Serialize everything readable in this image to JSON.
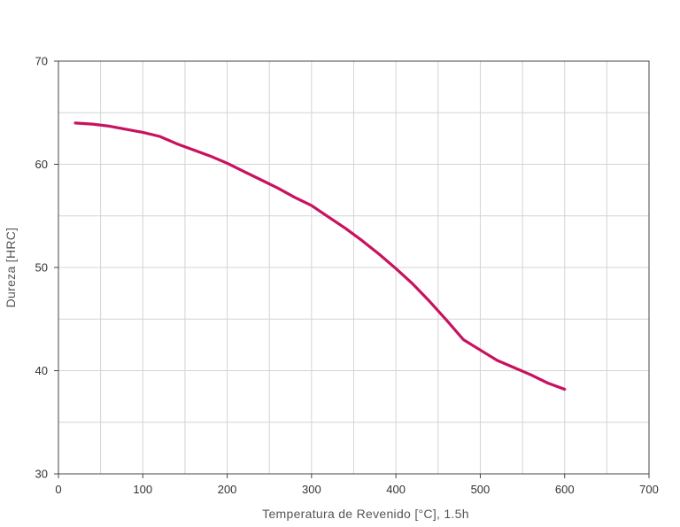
{
  "chart_data": {
    "type": "line",
    "title": "",
    "xlabel": "Temperatura de Revenido [°C], 1.5h",
    "ylabel": "Dureza [HRC]",
    "xlim": [
      0,
      700
    ],
    "ylim": [
      30,
      70
    ],
    "x_ticks": [
      0,
      100,
      200,
      300,
      400,
      500,
      600,
      700
    ],
    "y_ticks": [
      30,
      40,
      50,
      60,
      70
    ],
    "x_grid_step": 50,
    "y_grid_step": 5,
    "grid": true,
    "legend": "none",
    "series": [
      {
        "color": "#c8125f",
        "x": [
          20,
          40,
          60,
          80,
          100,
          120,
          140,
          160,
          180,
          200,
          220,
          240,
          260,
          280,
          300,
          320,
          340,
          360,
          380,
          400,
          420,
          440,
          460,
          480,
          500,
          520,
          540,
          560,
          580,
          600
        ],
        "y": [
          64.0,
          63.9,
          63.7,
          63.4,
          63.1,
          62.7,
          62.0,
          61.4,
          60.8,
          60.1,
          59.3,
          58.5,
          57.7,
          56.8,
          56.0,
          54.9,
          53.8,
          52.6,
          51.3,
          49.9,
          48.4,
          46.7,
          44.9,
          43.0,
          42.0,
          41.0,
          40.3,
          39.6,
          38.8,
          38.2
        ]
      }
    ]
  }
}
